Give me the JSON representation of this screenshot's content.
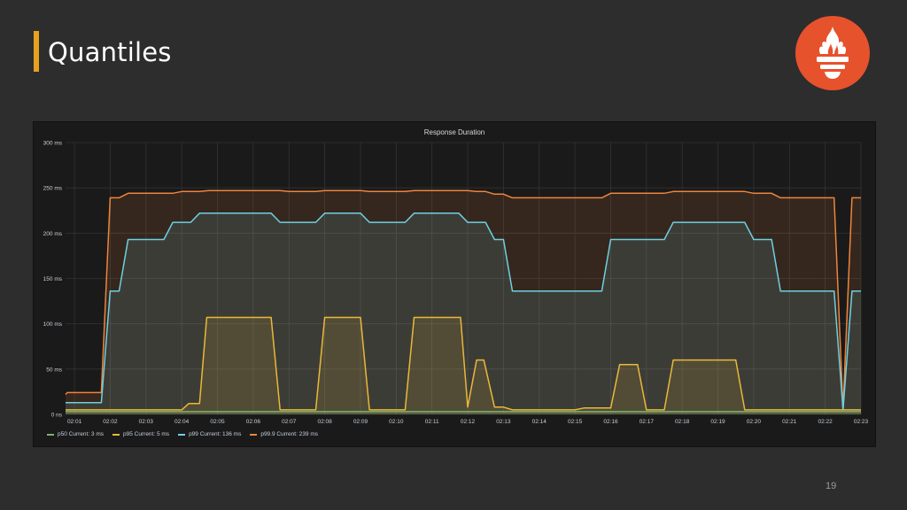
{
  "slide": {
    "title": "Quantiles",
    "page_number": "19"
  },
  "colors": {
    "accent": "#e6a11f",
    "logo": "#e6522c",
    "background": "#2d2d2d",
    "panel": "#1a1a1a"
  },
  "logo": {
    "icon": "prometheus-flame-icon"
  },
  "chart_data": {
    "type": "area",
    "title": "Response Duration",
    "ylim": [
      0,
      300
    ],
    "yticks": [
      0,
      50,
      100,
      150,
      200,
      250,
      300
    ],
    "ytick_labels": [
      "0 ns",
      "50 ms",
      "100 ms",
      "150 ms",
      "200 ms",
      "250 ms",
      "300 ms"
    ],
    "xlim": [
      0.75,
      23
    ],
    "xticks": [
      "02:01",
      "02:02",
      "02:03",
      "02:04",
      "02:05",
      "02:06",
      "02:07",
      "02:08",
      "02:09",
      "02:10",
      "02:11",
      "02:12",
      "02:13",
      "02:14",
      "02:15",
      "02:16",
      "02:17",
      "02:18",
      "02:19",
      "02:20",
      "02:21",
      "02:22",
      "02:23"
    ],
    "grid": true,
    "legend_position": "bottom-left",
    "series": [
      {
        "name": "p50",
        "color": "#7eb26d",
        "legend": "p50  Current: 3 ms",
        "points": [
          [
            0.75,
            3
          ],
          [
            22.5,
            3
          ],
          [
            22.75,
            3
          ],
          [
            23,
            3
          ]
        ]
      },
      {
        "name": "p95",
        "color": "#eab839",
        "legend": "p95  Current: 5 ms",
        "points": [
          [
            0.75,
            5
          ],
          [
            4.0,
            5
          ],
          [
            4.2,
            12
          ],
          [
            4.5,
            12
          ],
          [
            4.7,
            107
          ],
          [
            6.5,
            107
          ],
          [
            6.75,
            5
          ],
          [
            7.75,
            5
          ],
          [
            8.0,
            107
          ],
          [
            9.0,
            107
          ],
          [
            9.25,
            5
          ],
          [
            10.25,
            5
          ],
          [
            10.5,
            107
          ],
          [
            11.8,
            107
          ],
          [
            12.0,
            8
          ],
          [
            12.25,
            60
          ],
          [
            12.45,
            60
          ],
          [
            12.75,
            8
          ],
          [
            13.0,
            8
          ],
          [
            13.25,
            5
          ],
          [
            15.0,
            5
          ],
          [
            15.25,
            7
          ],
          [
            16.0,
            7
          ],
          [
            16.25,
            55
          ],
          [
            16.75,
            55
          ],
          [
            17.0,
            5
          ],
          [
            17.5,
            5
          ],
          [
            17.75,
            60
          ],
          [
            19.5,
            60
          ],
          [
            19.75,
            5
          ],
          [
            22.5,
            5
          ],
          [
            22.75,
            5
          ],
          [
            23,
            5
          ]
        ]
      },
      {
        "name": "p99",
        "color": "#6ed0e0",
        "legend": "p99  Current: 136 ms",
        "points": [
          [
            0.75,
            13
          ],
          [
            1.0,
            13
          ],
          [
            1.75,
            13
          ],
          [
            2.0,
            136
          ],
          [
            2.25,
            136
          ],
          [
            2.5,
            193
          ],
          [
            3.5,
            193
          ],
          [
            3.75,
            212
          ],
          [
            4.25,
            212
          ],
          [
            4.5,
            222
          ],
          [
            6.5,
            222
          ],
          [
            6.75,
            212
          ],
          [
            7.75,
            212
          ],
          [
            8.0,
            222
          ],
          [
            9.0,
            222
          ],
          [
            9.25,
            212
          ],
          [
            10.25,
            212
          ],
          [
            10.5,
            222
          ],
          [
            11.75,
            222
          ],
          [
            12.0,
            212
          ],
          [
            12.5,
            212
          ],
          [
            12.75,
            193
          ],
          [
            13.0,
            193
          ],
          [
            13.25,
            136
          ],
          [
            15.75,
            136
          ],
          [
            16.0,
            193
          ],
          [
            17.5,
            193
          ],
          [
            17.75,
            212
          ],
          [
            19.75,
            212
          ],
          [
            20.0,
            193
          ],
          [
            20.5,
            193
          ],
          [
            20.75,
            136
          ],
          [
            22.25,
            136
          ],
          [
            22.5,
            5
          ],
          [
            22.75,
            136
          ],
          [
            23,
            136
          ]
        ]
      },
      {
        "name": "p99.9",
        "color": "#ef843c",
        "legend": "p99.9  Current: 239 ms",
        "points": [
          [
            0.75,
            22
          ],
          [
            0.8,
            24
          ],
          [
            1.75,
            24
          ],
          [
            2.0,
            239
          ],
          [
            2.25,
            239
          ],
          [
            2.5,
            244
          ],
          [
            3.75,
            244
          ],
          [
            4.0,
            246
          ],
          [
            4.5,
            246
          ],
          [
            4.75,
            247
          ],
          [
            6.75,
            247
          ],
          [
            7.0,
            246
          ],
          [
            7.75,
            246
          ],
          [
            8.0,
            247
          ],
          [
            9.0,
            247
          ],
          [
            9.25,
            246
          ],
          [
            10.25,
            246
          ],
          [
            10.5,
            247
          ],
          [
            12.0,
            247
          ],
          [
            12.25,
            246
          ],
          [
            12.5,
            246
          ],
          [
            12.75,
            243
          ],
          [
            13.0,
            243
          ],
          [
            13.25,
            239
          ],
          [
            15.75,
            239
          ],
          [
            16.0,
            244
          ],
          [
            17.5,
            244
          ],
          [
            17.75,
            246
          ],
          [
            19.75,
            246
          ],
          [
            20.0,
            244
          ],
          [
            20.5,
            244
          ],
          [
            20.75,
            239
          ],
          [
            22.25,
            239
          ],
          [
            22.5,
            5
          ],
          [
            22.75,
            239
          ],
          [
            23,
            239
          ]
        ]
      }
    ]
  }
}
